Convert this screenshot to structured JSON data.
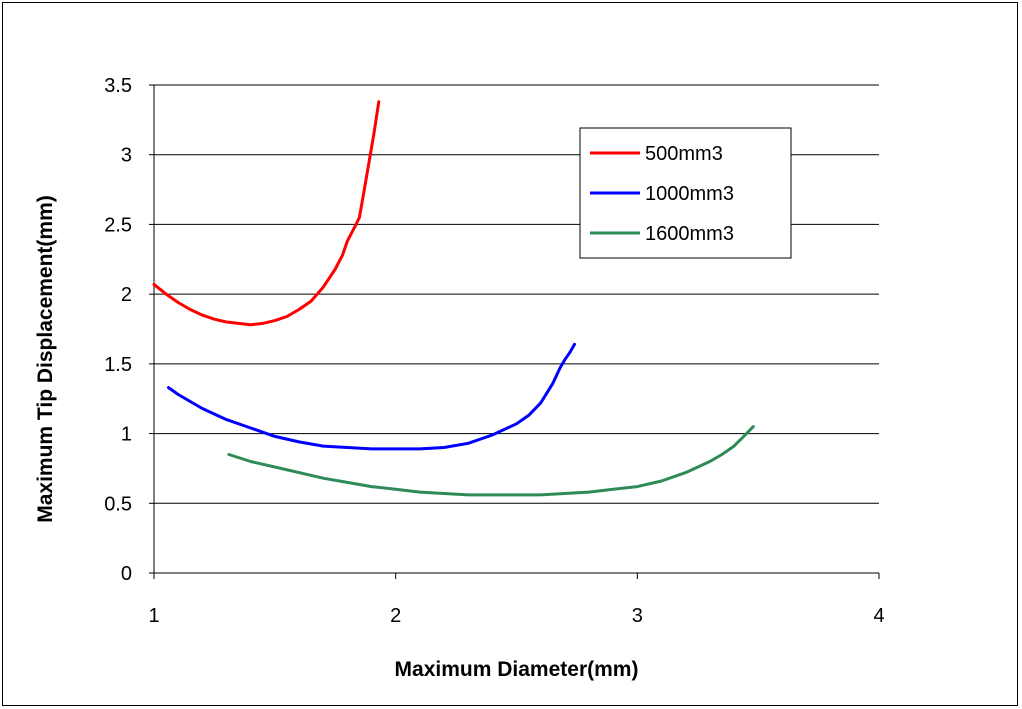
{
  "chart_data": {
    "type": "line",
    "title": "",
    "xlabel": "Maximum Diameter(mm)",
    "ylabel": "Maximum Tip Displacement(mm)",
    "xlim": [
      1,
      4
    ],
    "ylim": [
      0,
      3.5
    ],
    "x_ticks": [
      "1",
      "2",
      "3",
      "4"
    ],
    "y_ticks": [
      "0",
      "0.5",
      "1",
      "1.5",
      "2",
      "2.5",
      "3",
      "3.5"
    ],
    "grid": "horizontal",
    "legend_position": "top-right",
    "series": [
      {
        "name": "500mm3",
        "color": "#ff0000",
        "x": [
          1.0,
          1.05,
          1.1,
          1.15,
          1.2,
          1.25,
          1.3,
          1.35,
          1.4,
          1.45,
          1.5,
          1.55,
          1.6,
          1.65,
          1.7,
          1.75,
          1.78,
          1.8,
          1.83,
          1.85,
          1.87,
          1.89,
          1.91,
          1.93
        ],
        "y": [
          2.07,
          2.0,
          1.94,
          1.89,
          1.85,
          1.82,
          1.8,
          1.79,
          1.78,
          1.79,
          1.81,
          1.84,
          1.89,
          1.95,
          2.05,
          2.18,
          2.28,
          2.38,
          2.48,
          2.55,
          2.75,
          2.95,
          3.15,
          3.38
        ]
      },
      {
        "name": "1000mm3",
        "color": "#0000ff",
        "x": [
          1.06,
          1.1,
          1.2,
          1.3,
          1.4,
          1.5,
          1.6,
          1.7,
          1.8,
          1.9,
          2.0,
          2.1,
          2.2,
          2.3,
          2.4,
          2.5,
          2.55,
          2.6,
          2.65,
          2.68,
          2.7,
          2.72,
          2.74
        ],
        "y": [
          1.33,
          1.28,
          1.18,
          1.1,
          1.04,
          0.98,
          0.94,
          0.91,
          0.9,
          0.89,
          0.89,
          0.89,
          0.9,
          0.93,
          0.99,
          1.07,
          1.13,
          1.22,
          1.36,
          1.47,
          1.53,
          1.58,
          1.64
        ]
      },
      {
        "name": "1600mm3",
        "color": "#2e8b57",
        "x": [
          1.31,
          1.4,
          1.5,
          1.6,
          1.7,
          1.8,
          1.9,
          2.0,
          2.1,
          2.2,
          2.3,
          2.4,
          2.5,
          2.6,
          2.7,
          2.8,
          2.9,
          3.0,
          3.1,
          3.2,
          3.3,
          3.35,
          3.4,
          3.44,
          3.48
        ],
        "y": [
          0.85,
          0.8,
          0.76,
          0.72,
          0.68,
          0.65,
          0.62,
          0.6,
          0.58,
          0.57,
          0.56,
          0.56,
          0.56,
          0.56,
          0.57,
          0.58,
          0.6,
          0.62,
          0.66,
          0.72,
          0.8,
          0.85,
          0.91,
          0.98,
          1.05
        ]
      }
    ]
  }
}
